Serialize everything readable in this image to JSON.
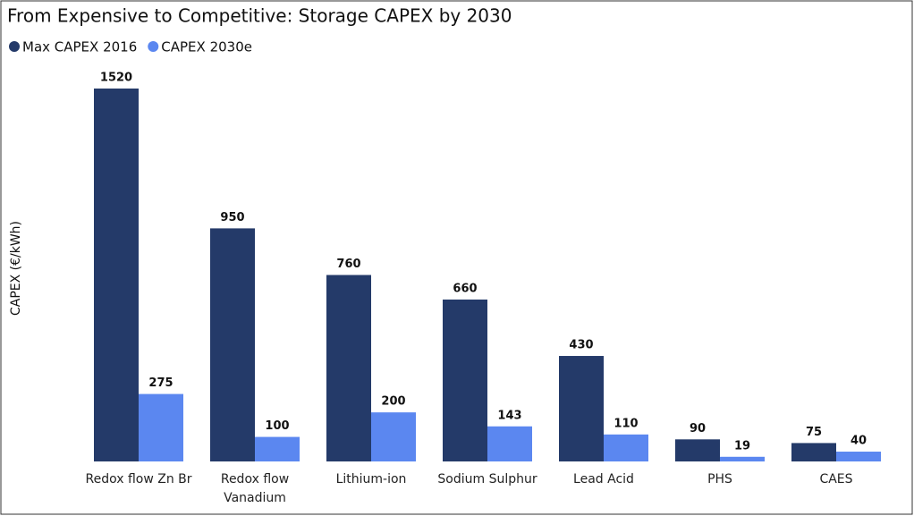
{
  "chart_data": {
    "type": "bar",
    "title": "From Expensive to Competitive: Storage CAPEX by 2030",
    "y_label": "CAPEX (€/kWh)",
    "categories": [
      "Redox flow Zn Br",
      "Redox flow Vanadium",
      "Lithium-ion",
      "Sodium Sulphur",
      "Lead Acid",
      "PHS",
      "CAES"
    ],
    "series": [
      {
        "name": "Max CAPEX 2016",
        "color": "#243a69",
        "values": [
          1520,
          950,
          760,
          660,
          430,
          90,
          75
        ]
      },
      {
        "name": "CAPEX 2030e",
        "color": "#5b87f0",
        "values": [
          275,
          100,
          200,
          143,
          110,
          19,
          40
        ]
      }
    ],
    "ylim": [
      0,
      1520
    ],
    "legend": "top-left"
  }
}
